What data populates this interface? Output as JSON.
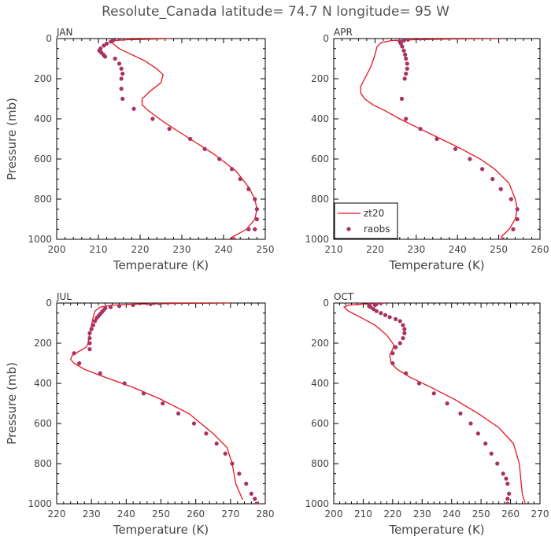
{
  "title": "Resolute_Canada   latitude= 74.7 N longitude= 95 W",
  "colors": {
    "model": "#e8141c",
    "obs": "#a83263",
    "axis": "#000000",
    "text": "#444444"
  },
  "legend": {
    "model_label": "zt20",
    "obs_label": "raobs"
  },
  "chart_data": [
    {
      "type": "line",
      "panel": "JAN",
      "xlabel": "Temperature (K)",
      "ylabel": "Pressure (mb)",
      "xlim": [
        200,
        250
      ],
      "ylim": [
        1000,
        0
      ],
      "xticks": [
        200,
        210,
        220,
        230,
        240,
        250
      ],
      "yticks": [
        0,
        200,
        400,
        600,
        800,
        1000
      ],
      "series": [
        {
          "name": "zt20",
          "kind": "line",
          "x": [
            227,
            222,
            217,
            214,
            213,
            213.5,
            215,
            218,
            221,
            224,
            225.5,
            225,
            222.5,
            220.5,
            220.5,
            222,
            226,
            232,
            238,
            243,
            246,
            247.5,
            248,
            247.5,
            245.5,
            242,
            240.8
          ],
          "y": [
            0,
            3,
            6,
            10,
            15,
            25,
            50,
            80,
            110,
            150,
            180,
            220,
            260,
            300,
            330,
            360,
            420,
            500,
            580,
            660,
            740,
            800,
            850,
            900,
            950,
            990,
            1010
          ]
        },
        {
          "name": "raobs",
          "kind": "points",
          "x": [
            215,
            213.5,
            213,
            212,
            211.3,
            210.5,
            210.2,
            210.7,
            211.2,
            211.6,
            214,
            215,
            215.5,
            215.8,
            215.5,
            215.5,
            215.8,
            218.5,
            223,
            227,
            232,
            235.5,
            239,
            242,
            244,
            246,
            247.5,
            248,
            248,
            247.5,
            246,
            242.5
          ],
          "y": [
            0,
            10,
            15,
            25,
            35,
            50,
            60,
            70,
            80,
            90,
            100,
            125,
            150,
            175,
            200,
            250,
            300,
            350,
            400,
            450,
            500,
            550,
            600,
            650,
            700,
            750,
            800,
            850,
            900,
            950,
            950,
            1000
          ]
        }
      ]
    },
    {
      "type": "line",
      "panel": "APR",
      "xlabel": "Temperature (K)",
      "ylabel": "",
      "xlim": [
        210,
        260
      ],
      "ylim": [
        1000,
        0
      ],
      "xticks": [
        210,
        220,
        230,
        240,
        250,
        260
      ],
      "yticks": [
        0,
        200,
        400,
        600,
        800,
        1000
      ],
      "series": [
        {
          "name": "zt20",
          "kind": "line",
          "x": [
            250,
            240,
            230,
            224,
            221.5,
            220.5,
            220,
            219,
            217.5,
            216.5,
            216.5,
            217.5,
            219.5,
            222.5,
            226,
            231,
            236,
            241,
            245.5,
            249,
            252.5,
            254,
            254.5,
            254,
            252.5,
            250.5
          ],
          "y": [
            0,
            2,
            5,
            10,
            20,
            40,
            80,
            140,
            200,
            240,
            270,
            300,
            330,
            360,
            400,
            450,
            500,
            550,
            600,
            650,
            720,
            800,
            850,
            900,
            950,
            990
          ]
        },
        {
          "name": "raobs",
          "kind": "points",
          "x": [
            231,
            228,
            227,
            226,
            226.3,
            226.6,
            227,
            227.3,
            227.5,
            227.8,
            227.8,
            227.5,
            227.2,
            226.5,
            227.5,
            231,
            235,
            239.5,
            243,
            246,
            248.5,
            250.5,
            253,
            254.5,
            254.5,
            253.5,
            251
          ],
          "y": [
            0,
            5,
            10,
            15,
            25,
            40,
            60,
            80,
            100,
            125,
            150,
            175,
            200,
            300,
            400,
            450,
            500,
            550,
            600,
            650,
            700,
            750,
            800,
            850,
            900,
            950,
            1000
          ]
        }
      ]
    },
    {
      "type": "line",
      "panel": "JUL",
      "xlabel": "Temperature (K)",
      "ylabel": "Pressure (mb)",
      "xlim": [
        220,
        280
      ],
      "ylim": [
        1000,
        0
      ],
      "xticks": [
        220,
        230,
        240,
        250,
        260,
        270,
        280
      ],
      "yticks": [
        0,
        200,
        400,
        600,
        800,
        1000
      ],
      "series": [
        {
          "name": "zt20",
          "kind": "line",
          "x": [
            270,
            255,
            243,
            236,
            232.5,
            231,
            230.5,
            230,
            229.5,
            229.2,
            229,
            228.5,
            226.5,
            224.5,
            224,
            225,
            228,
            234,
            242,
            250,
            258,
            265,
            269,
            270.5,
            271.5,
            273.5
          ],
          "y": [
            0,
            2,
            5,
            10,
            20,
            40,
            70,
            110,
            150,
            180,
            200,
            220,
            240,
            260,
            280,
            300,
            330,
            370,
            420,
            480,
            550,
            650,
            720,
            800,
            900,
            980
          ]
        },
        {
          "name": "raobs",
          "kind": "points",
          "x": [
            249.5,
            247,
            242,
            238,
            235.5,
            234,
            233.5,
            233,
            232.5,
            232,
            231.5,
            231,
            230.5,
            230,
            229.5,
            229.5,
            229.5,
            229.5,
            225,
            226.5,
            232.5,
            239.5,
            245,
            250.5,
            255,
            259.5,
            263,
            266,
            268.5,
            270.5,
            272.5,
            274.5,
            276,
            277,
            277.5
          ],
          "y": [
            0,
            5,
            10,
            15,
            20,
            25,
            35,
            45,
            55,
            65,
            75,
            90,
            110,
            130,
            150,
            175,
            200,
            230,
            250,
            300,
            350,
            400,
            450,
            500,
            550,
            600,
            650,
            700,
            750,
            800,
            850,
            900,
            950,
            975,
            1000
          ]
        }
      ]
    },
    {
      "type": "line",
      "panel": "OCT",
      "xlabel": "Temperature (K)",
      "ylabel": "",
      "xlim": [
        200,
        270
      ],
      "ylim": [
        1000,
        0
      ],
      "xticks": [
        200,
        210,
        220,
        230,
        240,
        250,
        260,
        270
      ],
      "yticks": [
        0,
        200,
        400,
        600,
        800,
        1000
      ],
      "series": [
        {
          "name": "zt20",
          "kind": "line",
          "x": [
            218,
            210,
            205,
            203.5,
            205,
            209,
            214,
            218,
            220.5,
            220,
            219,
            219.5,
            221.5,
            226,
            233,
            241,
            249,
            256,
            261,
            263,
            263.5,
            264,
            265
          ],
          "y": [
            0,
            5,
            10,
            20,
            40,
            70,
            110,
            160,
            210,
            230,
            260,
            300,
            330,
            370,
            420,
            480,
            550,
            620,
            700,
            800,
            880,
            950,
            1000
          ]
        },
        {
          "name": "raobs",
          "kind": "points",
          "x": [
            216,
            214.5,
            214,
            212,
            212,
            212.5,
            213.5,
            214.5,
            216,
            217.5,
            219,
            221,
            222.5,
            223.5,
            224,
            224,
            223.5,
            222.5,
            221,
            220,
            220,
            224.5,
            229,
            234,
            238.5,
            243,
            246.5,
            249,
            251.5,
            253.5,
            255.5,
            257.5,
            258.5,
            259,
            259.5,
            259,
            259
          ],
          "y": [
            0,
            5,
            10,
            10,
            15,
            20,
            30,
            40,
            50,
            60,
            70,
            80,
            90,
            110,
            130,
            150,
            175,
            200,
            220,
            250,
            300,
            350,
            400,
            450,
            500,
            550,
            600,
            650,
            700,
            750,
            800,
            850,
            875,
            900,
            950,
            975,
            1000
          ]
        }
      ]
    }
  ]
}
